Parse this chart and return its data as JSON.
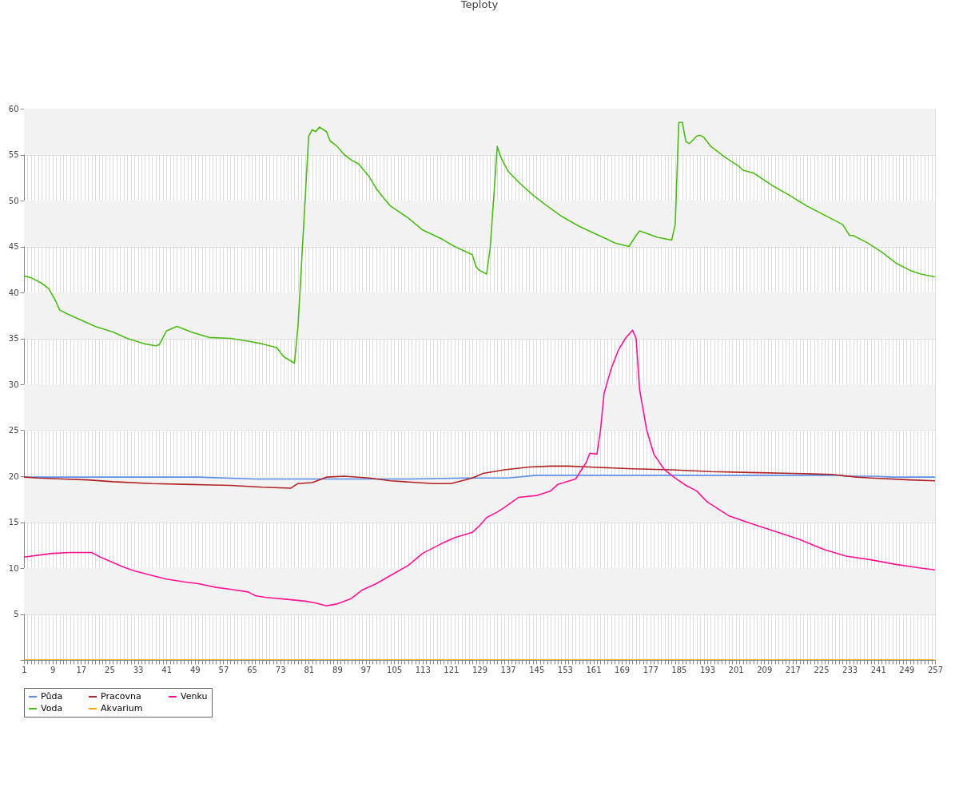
{
  "chart_data": {
    "type": "line",
    "title": "Teploty",
    "xlim": [
      1,
      257
    ],
    "xticks": [
      1,
      {
        "value": 2,
        "label": null
      },
      {
        "value": 3,
        "label": null
      },
      {
        "value": 4,
        "label": null
      },
      {
        "value": 5,
        "label": null
      },
      {
        "value": 6,
        "label": null
      },
      {
        "value": 7,
        "label": null
      },
      {
        "value": 8,
        "label": null
      },
      9,
      {
        "value": 10,
        "label": null
      },
      {
        "value": 11,
        "label": null
      },
      {
        "value": 12,
        "label": null
      },
      {
        "value": 13,
        "label": null
      },
      {
        "value": 14,
        "label": null
      },
      {
        "value": 15,
        "label": null
      },
      {
        "value": 16,
        "label": null
      },
      17,
      {
        "value": 18,
        "label": null
      },
      {
        "value": 19,
        "label": null
      },
      {
        "value": 20,
        "label": null
      },
      {
        "value": 21,
        "label": null
      },
      {
        "value": 22,
        "label": null
      },
      {
        "value": 23,
        "label": null
      },
      {
        "value": 24,
        "label": null
      },
      25,
      {
        "value": 26,
        "label": null
      },
      {
        "value": 27,
        "label": null
      },
      {
        "value": 28,
        "label": null
      },
      {
        "value": 29,
        "label": null
      },
      {
        "value": 30,
        "label": null
      },
      {
        "value": 31,
        "label": null
      },
      {
        "value": 32,
        "label": null
      },
      33,
      {
        "value": 34,
        "label": null
      },
      {
        "value": 35,
        "label": null
      },
      {
        "value": 36,
        "label": null
      },
      {
        "value": 37,
        "label": null
      },
      {
        "value": 38,
        "label": null
      },
      {
        "value": 39,
        "label": null
      },
      {
        "value": 40,
        "label": null
      },
      41,
      {
        "value": 42,
        "label": null
      },
      {
        "value": 43,
        "label": null
      },
      {
        "value": 44,
        "label": null
      },
      {
        "value": 45,
        "label": null
      },
      {
        "value": 46,
        "label": null
      },
      {
        "value": 47,
        "label": null
      },
      {
        "value": 48,
        "label": null
      },
      49,
      {
        "value": 50,
        "label": null
      },
      {
        "value": 51,
        "label": null
      },
      {
        "value": 52,
        "label": null
      },
      {
        "value": 53,
        "label": null
      },
      {
        "value": 54,
        "label": null
      },
      {
        "value": 55,
        "label": null
      },
      {
        "value": 56,
        "label": null
      },
      57,
      {
        "value": 58,
        "label": null
      },
      {
        "value": 59,
        "label": null
      },
      {
        "value": 60,
        "label": null
      },
      {
        "value": 61,
        "label": null
      },
      {
        "value": 62,
        "label": null
      },
      {
        "value": 63,
        "label": null
      },
      {
        "value": 64,
        "label": null
      },
      65,
      {
        "value": 66,
        "label": null
      },
      {
        "value": 67,
        "label": null
      },
      {
        "value": 68,
        "label": null
      },
      {
        "value": 69,
        "label": null
      },
      {
        "value": 70,
        "label": null
      },
      {
        "value": 71,
        "label": null
      },
      {
        "value": 72,
        "label": null
      },
      73,
      {
        "value": 74,
        "label": null
      },
      {
        "value": 75,
        "label": null
      },
      {
        "value": 76,
        "label": null
      },
      {
        "value": 77,
        "label": null
      },
      {
        "value": 78,
        "label": null
      },
      {
        "value": 79,
        "label": null
      },
      {
        "value": 80,
        "label": null
      },
      81,
      {
        "value": 82,
        "label": null
      },
      {
        "value": 83,
        "label": null
      },
      {
        "value": 84,
        "label": null
      },
      {
        "value": 85,
        "label": null
      },
      {
        "value": 86,
        "label": null
      },
      {
        "value": 87,
        "label": null
      },
      {
        "value": 88,
        "label": null
      },
      89,
      {
        "value": 90,
        "label": null
      },
      {
        "value": 91,
        "label": null
      },
      {
        "value": 92,
        "label": null
      },
      {
        "value": 93,
        "label": null
      },
      {
        "value": 94,
        "label": null
      },
      {
        "value": 95,
        "label": null
      },
      {
        "value": 96,
        "label": null
      },
      97,
      {
        "value": 98,
        "label": null
      },
      {
        "value": 99,
        "label": null
      },
      {
        "value": 100,
        "label": null
      },
      {
        "value": 101,
        "label": null
      },
      {
        "value": 102,
        "label": null
      },
      {
        "value": 103,
        "label": null
      },
      {
        "value": 104,
        "label": null
      },
      105,
      {
        "value": 106,
        "label": null
      },
      {
        "value": 107,
        "label": null
      },
      {
        "value": 108,
        "label": null
      },
      {
        "value": 109,
        "label": null
      },
      {
        "value": 110,
        "label": null
      },
      {
        "value": 111,
        "label": null
      },
      {
        "value": 112,
        "label": null
      },
      113,
      {
        "value": 114,
        "label": null
      },
      {
        "value": 115,
        "label": null
      },
      {
        "value": 116,
        "label": null
      },
      {
        "value": 117,
        "label": null
      },
      {
        "value": 118,
        "label": null
      },
      {
        "value": 119,
        "label": null
      },
      {
        "value": 120,
        "label": null
      },
      121,
      {
        "value": 122,
        "label": null
      },
      {
        "value": 123,
        "label": null
      },
      {
        "value": 124,
        "label": null
      },
      {
        "value": 125,
        "label": null
      },
      {
        "value": 126,
        "label": null
      },
      {
        "value": 127,
        "label": null
      },
      {
        "value": 128,
        "label": null
      },
      129,
      {
        "value": 130,
        "label": null
      },
      {
        "value": 131,
        "label": null
      },
      {
        "value": 132,
        "label": null
      },
      {
        "value": 133,
        "label": null
      },
      {
        "value": 134,
        "label": null
      },
      {
        "value": 135,
        "label": null
      },
      {
        "value": 136,
        "label": null
      },
      137,
      {
        "value": 138,
        "label": null
      },
      {
        "value": 139,
        "label": null
      },
      {
        "value": 140,
        "label": null
      },
      {
        "value": 141,
        "label": null
      },
      {
        "value": 142,
        "label": null
      },
      {
        "value": 143,
        "label": null
      },
      {
        "value": 144,
        "label": null
      },
      145,
      {
        "value": 146,
        "label": null
      },
      {
        "value": 147,
        "label": null
      },
      {
        "value": 148,
        "label": null
      },
      {
        "value": 149,
        "label": null
      },
      {
        "value": 150,
        "label": null
      },
      {
        "value": 151,
        "label": null
      },
      {
        "value": 152,
        "label": null
      },
      153,
      {
        "value": 154,
        "label": null
      },
      {
        "value": 155,
        "label": null
      },
      {
        "value": 156,
        "label": null
      },
      {
        "value": 157,
        "label": null
      },
      {
        "value": 158,
        "label": null
      },
      {
        "value": 159,
        "label": null
      },
      {
        "value": 160,
        "label": null
      },
      161,
      {
        "value": 162,
        "label": null
      },
      {
        "value": 163,
        "label": null
      },
      {
        "value": 164,
        "label": null
      },
      {
        "value": 165,
        "label": null
      },
      {
        "value": 166,
        "label": null
      },
      {
        "value": 167,
        "label": null
      },
      {
        "value": 168,
        "label": null
      },
      169,
      {
        "value": 170,
        "label": null
      },
      {
        "value": 171,
        "label": null
      },
      {
        "value": 172,
        "label": null
      },
      {
        "value": 173,
        "label": null
      },
      {
        "value": 174,
        "label": null
      },
      {
        "value": 175,
        "label": null
      },
      {
        "value": 176,
        "label": null
      },
      177,
      {
        "value": 178,
        "label": null
      },
      {
        "value": 179,
        "label": null
      },
      {
        "value": 180,
        "label": null
      },
      {
        "value": 181,
        "label": null
      },
      {
        "value": 182,
        "label": null
      },
      {
        "value": 183,
        "label": null
      },
      {
        "value": 184,
        "label": null
      },
      185,
      {
        "value": 186,
        "label": null
      },
      {
        "value": 187,
        "label": null
      },
      {
        "value": 188,
        "label": null
      },
      {
        "value": 189,
        "label": null
      },
      {
        "value": 190,
        "label": null
      },
      {
        "value": 191,
        "label": null
      },
      {
        "value": 192,
        "label": null
      },
      193,
      {
        "value": 194,
        "label": null
      },
      {
        "value": 195,
        "label": null
      },
      {
        "value": 196,
        "label": null
      },
      {
        "value": 197,
        "label": null
      },
      {
        "value": 198,
        "label": null
      },
      {
        "value": 199,
        "label": null
      },
      {
        "value": 200,
        "label": null
      },
      201,
      {
        "value": 202,
        "label": null
      },
      {
        "value": 203,
        "label": null
      },
      {
        "value": 204,
        "label": null
      },
      {
        "value": 205,
        "label": null
      },
      {
        "value": 206,
        "label": null
      },
      {
        "value": 207,
        "label": null
      },
      {
        "value": 208,
        "label": null
      },
      209,
      {
        "value": 210,
        "label": null
      },
      {
        "value": 211,
        "label": null
      },
      {
        "value": 212,
        "label": null
      },
      {
        "value": 213,
        "label": null
      },
      {
        "value": 214,
        "label": null
      },
      {
        "value": 215,
        "label": null
      },
      {
        "value": 216,
        "label": null
      },
      217,
      {
        "value": 218,
        "label": null
      },
      {
        "value": 219,
        "label": null
      },
      {
        "value": 220,
        "label": null
      },
      {
        "value": 221,
        "label": null
      },
      {
        "value": 222,
        "label": null
      },
      {
        "value": 223,
        "label": null
      },
      {
        "value": 224,
        "label": null
      },
      225,
      {
        "value": 226,
        "label": null
      },
      {
        "value": 227,
        "label": null
      },
      {
        "value": 228,
        "label": null
      },
      {
        "value": 229,
        "label": null
      },
      {
        "value": 230,
        "label": null
      },
      {
        "value": 231,
        "label": null
      },
      {
        "value": 232,
        "label": null
      },
      233,
      {
        "value": 234,
        "label": null
      },
      {
        "value": 235,
        "label": null
      },
      {
        "value": 236,
        "label": null
      },
      {
        "value": 237,
        "label": null
      },
      {
        "value": 238,
        "label": null
      },
      {
        "value": 239,
        "label": null
      },
      {
        "value": 240,
        "label": null
      },
      241,
      {
        "value": 242,
        "label": null
      },
      {
        "value": 243,
        "label": null
      },
      {
        "value": 244,
        "label": null
      },
      {
        "value": 245,
        "label": null
      },
      {
        "value": 246,
        "label": null
      },
      {
        "value": 247,
        "label": null
      },
      {
        "value": 248,
        "label": null
      },
      249,
      {
        "value": 250,
        "label": null
      },
      {
        "value": 251,
        "label": null
      },
      {
        "value": 252,
        "label": null
      },
      {
        "value": 253,
        "label": null
      },
      {
        "value": 254,
        "label": null
      },
      {
        "value": 255,
        "label": null
      },
      {
        "value": 256,
        "label": null
      },
      257
    ],
    "ylim": [
      0,
      60
    ],
    "yticks": [
      {
        "value": 0,
        "label": null
      },
      5,
      10,
      15,
      20,
      25,
      30,
      35,
      40,
      45,
      50,
      55,
      60
    ],
    "grid": true,
    "legend": "bottom",
    "bands": [
      {
        "axis": "y",
        "from": 5,
        "to": 10,
        "color": "#f2f2f2"
      },
      {
        "axis": "y",
        "from": 15,
        "to": 20,
        "color": "#f2f2f2"
      },
      {
        "axis": "y",
        "from": 25,
        "to": 30,
        "color": "#f2f2f2"
      },
      {
        "axis": "y",
        "from": 35,
        "to": 40,
        "color": "#f2f2f2"
      },
      {
        "axis": "y",
        "from": 45,
        "to": 50,
        "color": "#f2f2f2"
      },
      {
        "axis": "y",
        "from": 55,
        "to": 60,
        "color": "#f2f2f2"
      }
    ],
    "series": [
      {
        "name": "Půda",
        "color": "#5b8fe8",
        "x": [
          1,
          37,
          50,
          66,
          85,
          110,
          125,
          137,
          145,
          155,
          230,
          232,
          240,
          245,
          257
        ],
        "values": [
          19.9,
          19.9,
          19.9,
          19.7,
          19.7,
          19.7,
          19.8,
          19.8,
          20.1,
          20.1,
          20.1,
          20.0,
          20.0,
          19.9,
          19.9
        ]
      },
      {
        "name": "Pracovna",
        "color": "#b22222",
        "x": [
          1,
          5,
          12,
          19,
          26,
          37,
          48,
          59,
          68,
          76,
          78,
          82,
          86,
          91,
          98,
          104,
          116,
          121,
          127,
          130,
          136,
          143,
          149,
          154,
          160,
          172,
          183,
          194,
          205,
          217,
          228,
          235,
          239,
          250,
          257
        ],
        "values": [
          19.9,
          19.8,
          19.7,
          19.6,
          19.4,
          19.2,
          19.1,
          19.0,
          18.8,
          18.7,
          19.2,
          19.3,
          19.9,
          20.0,
          19.8,
          19.5,
          19.2,
          19.2,
          19.8,
          20.3,
          20.7,
          21.0,
          21.1,
          21.1,
          21.0,
          20.8,
          20.7,
          20.5,
          20.4,
          20.3,
          20.2,
          19.9,
          19.8,
          19.6,
          19.5
        ]
      },
      {
        "name": "Venku",
        "color": "#ff1493",
        "x": [
          1,
          5,
          9,
          14,
          20,
          23,
          26,
          29,
          32,
          37,
          41,
          46,
          50,
          55,
          59,
          64,
          66,
          69,
          75,
          80,
          83,
          86,
          89,
          91,
          93,
          96,
          100,
          104,
          109,
          113,
          118,
          122,
          127,
          129,
          131,
          134,
          136,
          140,
          145,
          149,
          151,
          156,
          157,
          159,
          160,
          162,
          163,
          164,
          166,
          168,
          170,
          172,
          173,
          174,
          176,
          178,
          181,
          184,
          187,
          190,
          193,
          199,
          205,
          212,
          219,
          226,
          232,
          239,
          246,
          253,
          257
        ],
        "values": [
          11.2,
          11.4,
          11.6,
          11.7,
          11.7,
          11.1,
          10.6,
          10.1,
          9.7,
          9.2,
          8.8,
          8.5,
          8.3,
          7.9,
          7.7,
          7.4,
          7.0,
          6.8,
          6.6,
          6.4,
          6.2,
          5.9,
          6.1,
          6.4,
          6.7,
          7.6,
          8.3,
          9.2,
          10.3,
          11.6,
          12.6,
          13.3,
          13.9,
          14.6,
          15.5,
          16.1,
          16.6,
          17.7,
          17.9,
          18.4,
          19.1,
          19.7,
          20.3,
          21.5,
          22.5,
          22.4,
          25.0,
          29.0,
          31.7,
          33.7,
          35.0,
          35.9,
          35.0,
          29.4,
          25.0,
          22.4,
          20.7,
          19.8,
          19.0,
          18.4,
          17.2,
          15.7,
          14.9,
          14.0,
          13.1,
          12.0,
          11.3,
          10.9,
          10.4,
          10.0,
          9.8
        ]
      },
      {
        "name": "Voda",
        "color": "#4cbb17",
        "x": [
          1,
          3,
          6,
          8,
          10,
          11,
          13,
          17,
          21,
          26,
          30,
          35,
          38,
          39,
          41,
          44,
          48,
          53,
          59,
          64,
          68,
          72,
          74,
          77,
          78,
          81,
          82,
          83,
          84,
          86,
          87,
          89,
          91,
          93,
          95,
          98,
          100,
          102,
          104,
          109,
          113,
          118,
          122,
          127,
          128,
          129,
          131,
          132,
          134,
          135,
          137,
          140,
          144,
          147,
          152,
          157,
          162,
          167,
          171,
          173,
          174,
          179,
          183,
          184,
          185,
          186,
          187,
          188,
          190,
          191,
          192,
          194,
          198,
          200,
          202,
          203,
          206,
          211,
          216,
          221,
          226,
          231,
          233,
          234,
          238,
          242,
          246,
          250,
          253,
          257
        ],
        "values": [
          41.8,
          41.6,
          41.0,
          40.4,
          39.0,
          38.1,
          37.7,
          37.0,
          36.3,
          35.7,
          35.0,
          34.4,
          34.2,
          34.3,
          35.8,
          36.3,
          35.7,
          35.1,
          35.0,
          34.7,
          34.4,
          34.0,
          33.0,
          32.3,
          36.3,
          57.0,
          57.7,
          57.5,
          58.0,
          57.5,
          56.5,
          55.9,
          55.0,
          54.4,
          54.0,
          52.6,
          51.3,
          50.3,
          49.4,
          48.1,
          46.8,
          45.9,
          45.0,
          44.1,
          42.8,
          42.4,
          42.0,
          44.8,
          55.9,
          54.7,
          53.2,
          52.0,
          50.6,
          49.7,
          48.3,
          47.2,
          46.3,
          45.4,
          45.0,
          46.2,
          46.7,
          46.0,
          45.7,
          47.4,
          58.5,
          58.5,
          56.4,
          56.2,
          57.0,
          57.1,
          56.9,
          55.9,
          54.7,
          54.2,
          53.7,
          53.3,
          53.0,
          51.7,
          50.6,
          49.4,
          48.4,
          47.4,
          46.2,
          46.2,
          45.4,
          44.4,
          43.2,
          42.4,
          42.0,
          41.7
        ]
      },
      {
        "name": "Akvarium",
        "color": "#ffa500",
        "x": [
          1,
          257
        ],
        "values": [
          0,
          0
        ]
      }
    ]
  }
}
